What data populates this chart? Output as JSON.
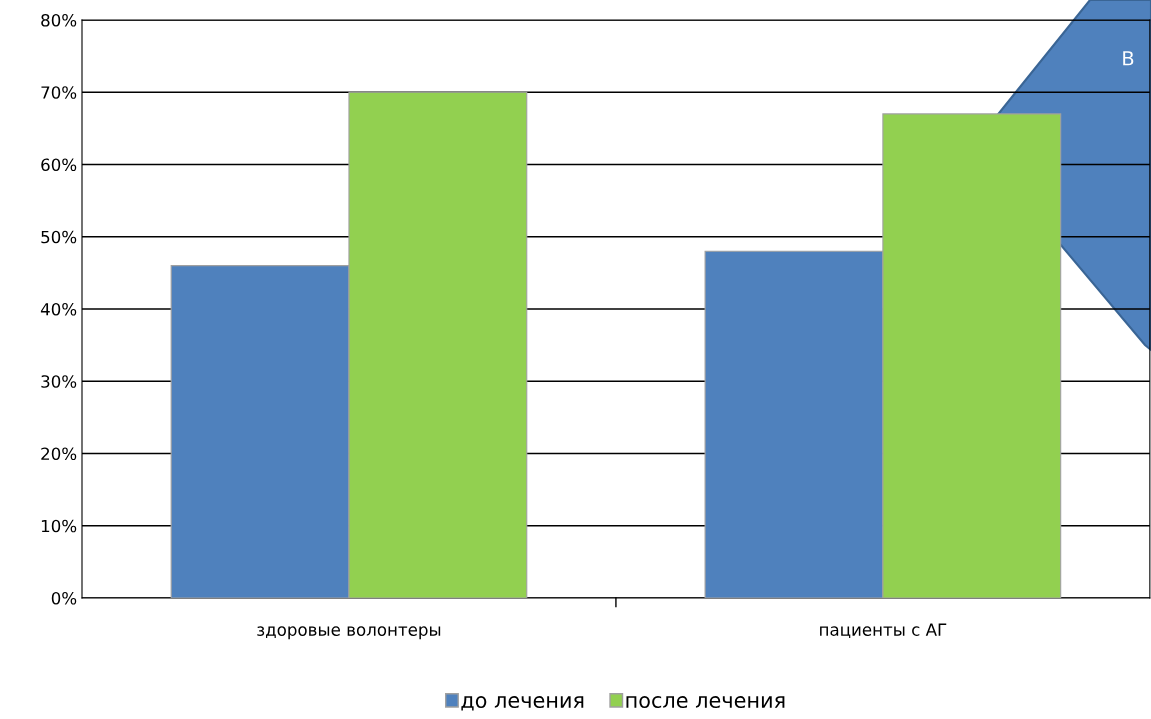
{
  "chart_data": {
    "type": "bar",
    "categories": [
      "здоровые волонтеры",
      "пациенты с АГ"
    ],
    "series": [
      {
        "name": "до лечения",
        "color": "#4f81bd",
        "values": [
          46,
          48
        ]
      },
      {
        "name": "после лечения",
        "color": "#92d050",
        "values": [
          70,
          67
        ]
      }
    ],
    "ylim": [
      0,
      80
    ],
    "yticks": [
      {
        "value": 0,
        "label": "0%"
      },
      {
        "value": 10,
        "label": "10%"
      },
      {
        "value": 20,
        "label": "20%"
      },
      {
        "value": 30,
        "label": "30%"
      },
      {
        "value": 40,
        "label": "40%"
      },
      {
        "value": 50,
        "label": "50%"
      },
      {
        "value": 60,
        "label": "60%"
      },
      {
        "value": 70,
        "label": "70%"
      },
      {
        "value": 80,
        "label": "80%"
      }
    ],
    "grid": "y",
    "legend": "bottom",
    "annotations": [
      "В"
    ]
  }
}
